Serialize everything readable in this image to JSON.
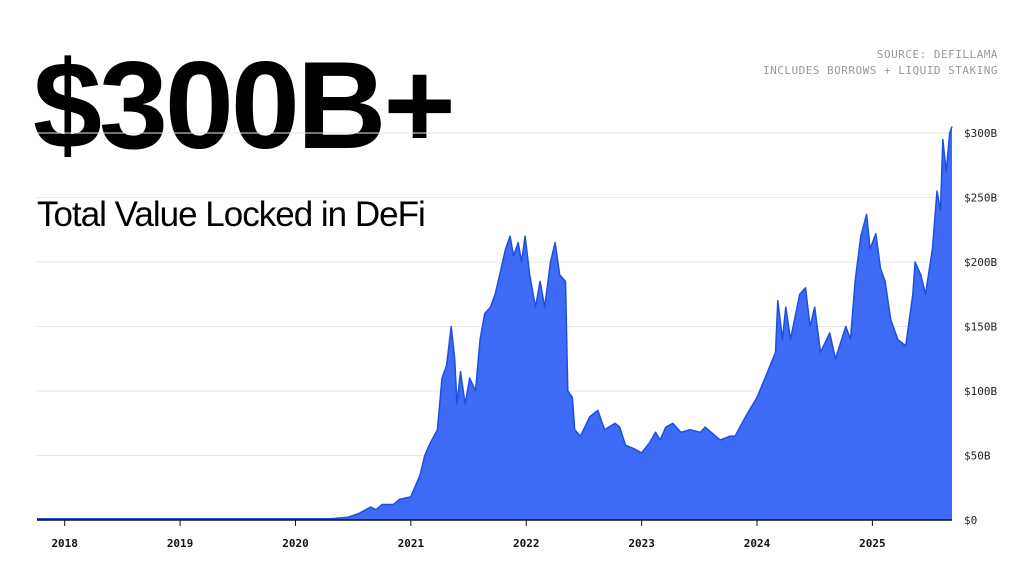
{
  "chart_data": {
    "type": "area",
    "title": "$300B+",
    "subtitle": "Total Value Locked in DeFi",
    "annotations": [
      "SOURCE: DEFILLAMA",
      "INCLUDES BORROWS + LIQUID STAKING"
    ],
    "color": "#3d6bf5",
    "grid": true,
    "xlim": [
      2017.76,
      2025.69
    ],
    "xticks": [
      2018,
      2019,
      2020,
      2021,
      2022,
      2023,
      2024,
      2025
    ],
    "ylim": [
      0,
      300
    ],
    "yticks": [
      {
        "value": 0,
        "label": "$0"
      },
      {
        "value": 50,
        "label": "$50B"
      },
      {
        "value": 100,
        "label": "$100B"
      },
      {
        "value": 150,
        "label": "$150B"
      },
      {
        "value": 200,
        "label": "$200B"
      },
      {
        "value": 250,
        "label": "$250B"
      },
      {
        "value": 300,
        "label": "$300B"
      }
    ],
    "x": [
      2017.76,
      2018.5,
      2019,
      2019.5,
      2020,
      2020.3,
      2020.45,
      2020.55,
      2020.65,
      2020.7,
      2020.75,
      2020.85,
      2020.9,
      2020.95,
      2021.0,
      2021.08,
      2021.12,
      2021.17,
      2021.23,
      2021.27,
      2021.31,
      2021.35,
      2021.38,
      2021.4,
      2021.43,
      2021.47,
      2021.51,
      2021.56,
      2021.6,
      2021.64,
      2021.69,
      2021.73,
      2021.77,
      2021.82,
      2021.86,
      2021.89,
      2021.93,
      2021.96,
      2021.99,
      2022.03,
      2022.08,
      2022.12,
      2022.16,
      2022.21,
      2022.25,
      2022.29,
      2022.34,
      2022.36,
      2022.4,
      2022.42,
      2022.47,
      2022.55,
      2022.62,
      2022.68,
      2022.77,
      2022.81,
      2022.86,
      2022.94,
      2023.0,
      2023.07,
      2023.12,
      2023.16,
      2023.21,
      2023.27,
      2023.34,
      2023.42,
      2023.51,
      2023.55,
      2023.64,
      2023.68,
      2023.77,
      2023.81,
      2023.9,
      2024.0,
      2024.07,
      2024.16,
      2024.18,
      2024.22,
      2024.25,
      2024.29,
      2024.37,
      2024.42,
      2024.46,
      2024.5,
      2024.55,
      2024.63,
      2024.68,
      2024.77,
      2024.81,
      2024.85,
      2024.9,
      2024.95,
      2024.98,
      2025.03,
      2025.07,
      2025.11,
      2025.16,
      2025.22,
      2025.29,
      2025.35,
      2025.37,
      2025.42,
      2025.46,
      2025.52,
      2025.56,
      2025.59,
      2025.61,
      2025.64,
      2025.67,
      2025.69
    ],
    "values": [
      1,
      1,
      1,
      1,
      1,
      1,
      2,
      5,
      10,
      8,
      12,
      12,
      16,
      17,
      18,
      35,
      50,
      60,
      70,
      110,
      120,
      150,
      125,
      90,
      115,
      90,
      110,
      100,
      140,
      160,
      165,
      175,
      190,
      210,
      220,
      205,
      215,
      200,
      220,
      190,
      165,
      185,
      165,
      200,
      215,
      190,
      185,
      100,
      95,
      70,
      65,
      80,
      85,
      70,
      75,
      72,
      58,
      55,
      52,
      60,
      68,
      62,
      72,
      75,
      68,
      70,
      68,
      72,
      65,
      62,
      65,
      65,
      80,
      95,
      110,
      130,
      170,
      140,
      165,
      140,
      175,
      180,
      150,
      165,
      130,
      145,
      125,
      150,
      140,
      185,
      220,
      237,
      210,
      222,
      195,
      185,
      155,
      140,
      135,
      175,
      200,
      190,
      175,
      210,
      255,
      240,
      295,
      270,
      300,
      305
    ]
  }
}
